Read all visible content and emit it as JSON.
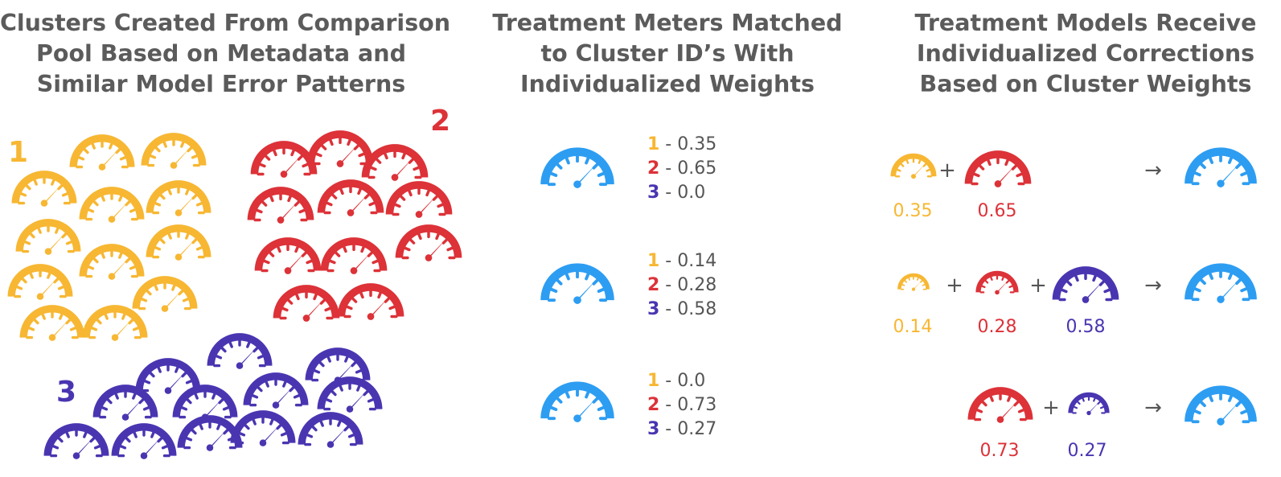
{
  "colors": {
    "cluster_1": "#f7b733",
    "cluster_2": "#dc3238",
    "cluster_3": "#4a35b1",
    "treatment": "#2d9df2",
    "text": "#5b5b5b"
  },
  "icons": {
    "meter": "speedometer-gauge-icon"
  },
  "panels": {
    "left": {
      "title_lines": [
        "Clusters Created From Comparison",
        "Pool Based on Metadata and",
        "Similar Model Error Patterns"
      ],
      "clusters": [
        {
          "id": "1"
        },
        {
          "id": "2"
        },
        {
          "id": "3"
        }
      ]
    },
    "middle": {
      "title_lines": [
        "Treatment Meters Matched",
        "to Cluster ID’s With",
        "Individualized Weights"
      ],
      "meters": [
        {
          "weights": [
            {
              "id": "1",
              "sep": " - ",
              "value": "0.35"
            },
            {
              "id": "2",
              "sep": " - ",
              "value": "0.65"
            },
            {
              "id": "3",
              "sep": " - ",
              "value": "0.0"
            }
          ]
        },
        {
          "weights": [
            {
              "id": "1",
              "sep": " - ",
              "value": "0.14"
            },
            {
              "id": "2",
              "sep": " - ",
              "value": "0.28"
            },
            {
              "id": "3",
              "sep": " - ",
              "value": "0.58"
            }
          ]
        },
        {
          "weights": [
            {
              "id": "1",
              "sep": " - ",
              "value": "0.0"
            },
            {
              "id": "2",
              "sep": " - ",
              "value": "0.73"
            },
            {
              "id": "3",
              "sep": " - ",
              "value": "0.27"
            }
          ]
        }
      ]
    },
    "right": {
      "title_lines": [
        "Treatment Models Receive",
        "Individualized Corrections",
        "Based on Cluster Weights"
      ],
      "plus": "+",
      "arrow": "→",
      "rows": [
        {
          "terms": [
            {
              "cluster": "1",
              "weight": "0.35"
            },
            {
              "cluster": "2",
              "weight": "0.65"
            }
          ]
        },
        {
          "terms": [
            {
              "cluster": "1",
              "weight": "0.14"
            },
            {
              "cluster": "2",
              "weight": "0.28"
            },
            {
              "cluster": "3",
              "weight": "0.58"
            }
          ]
        },
        {
          "terms": [
            {
              "cluster": "2",
              "weight": "0.73"
            },
            {
              "cluster": "3",
              "weight": "0.27"
            }
          ]
        }
      ]
    }
  }
}
